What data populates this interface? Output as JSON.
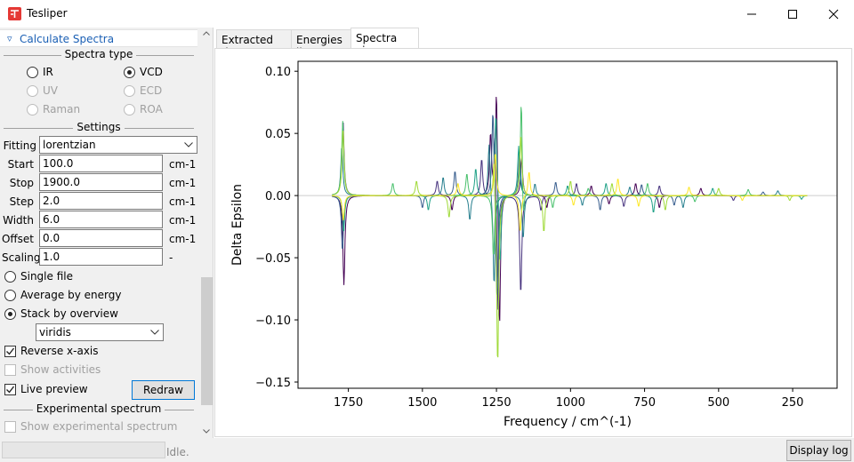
{
  "window": {
    "title": "Tesliper",
    "minimize_glyph": "─",
    "maximize_glyph": "☐",
    "close_glyph": "✕"
  },
  "sidebar": {
    "section_header": "▿ Calculate Spectra",
    "spectra_type": {
      "title": "Spectra type",
      "options": [
        {
          "label": "IR",
          "checked": false,
          "enabled": true
        },
        {
          "label": "VCD",
          "checked": true,
          "enabled": true
        },
        {
          "label": "UV",
          "checked": false,
          "enabled": false
        },
        {
          "label": "ECD",
          "checked": false,
          "enabled": false
        },
        {
          "label": "Raman",
          "checked": false,
          "enabled": false
        },
        {
          "label": "ROA",
          "checked": false,
          "enabled": false
        }
      ]
    },
    "settings": {
      "title": "Settings",
      "fitting_label": "Fitting",
      "fitting_value": "lorentzian",
      "fields": [
        {
          "label": "Start",
          "value": "100.0",
          "unit": "cm-1"
        },
        {
          "label": "Stop",
          "value": "1900.0",
          "unit": "cm-1"
        },
        {
          "label": "Step",
          "value": "2.0",
          "unit": "cm-1"
        },
        {
          "label": "Width",
          "value": "6.0",
          "unit": "cm-1"
        },
        {
          "label": "Offset",
          "value": "0.0",
          "unit": "cm-1"
        },
        {
          "label": "Scaling",
          "value": "1.0",
          "unit": "-"
        }
      ]
    },
    "mode": {
      "single_file": "Single file",
      "average_by_energy": "Average by energy",
      "stack_by_overview": "Stack by overview",
      "selected": "stack_by_overview"
    },
    "colormap": "viridis",
    "reverse_x_axis": {
      "label": "Reverse x-axis",
      "checked": true
    },
    "show_activities": {
      "label": "Show activities",
      "checked": false,
      "enabled": false
    },
    "live_preview": {
      "label": "Live preview",
      "checked": true
    },
    "redraw_label": "Redraw",
    "experimental": {
      "title": "Experimental spectrum",
      "show_label": "Show experimental spectrum",
      "checked": false,
      "enabled": false
    }
  },
  "tabs": [
    {
      "label": "Extracted data",
      "active": false
    },
    {
      "label": "Energies list",
      "active": false
    },
    {
      "label": "Spectra view",
      "active": true
    }
  ],
  "status": {
    "text": "Idle.",
    "display_log_label": "Display log"
  },
  "chart_data": {
    "type": "line",
    "xlabel": "Frequency / cm^(-1)",
    "ylabel": "Delta Epsilon",
    "xlim": [
      1920,
      100
    ],
    "ylim": [
      -0.155,
      0.108
    ],
    "x_reversed": true,
    "xticks": [
      1750,
      1500,
      1250,
      1000,
      750,
      500,
      250
    ],
    "yticks": [
      0.1,
      0.05,
      0.0,
      -0.05,
      -0.1,
      -0.15
    ],
    "colormap": "viridis",
    "grid": false,
    "series": [
      {
        "color": "#440154",
        "peaks": [
          [
            1765,
            -0.072
          ],
          [
            1250,
            0.097
          ],
          [
            1240,
            -0.12
          ],
          [
            1270,
            0.05
          ],
          [
            1165,
            0.03
          ],
          [
            1400,
            -0.012
          ],
          [
            1080,
            -0.01
          ],
          [
            930,
            0.008
          ],
          [
            870,
            -0.007
          ],
          [
            780,
            0.01
          ],
          [
            700,
            -0.01
          ],
          [
            560,
            0.006
          ]
        ]
      },
      {
        "color": "#46327e",
        "peaks": [
          [
            1768,
            0.062
          ],
          [
            1255,
            0.06
          ],
          [
            1245,
            -0.1
          ],
          [
            1168,
            -0.08
          ],
          [
            1300,
            0.03
          ],
          [
            1450,
            0.012
          ],
          [
            1100,
            -0.012
          ],
          [
            980,
            0.01
          ],
          [
            820,
            -0.009
          ],
          [
            700,
            0.008
          ],
          [
            450,
            -0.004
          ]
        ]
      },
      {
        "color": "#365c8d",
        "peaks": [
          [
            1770,
            -0.045
          ],
          [
            1262,
            0.075
          ],
          [
            1248,
            -0.09
          ],
          [
            1172,
            0.035
          ],
          [
            1390,
            0.02
          ],
          [
            1500,
            -0.01
          ],
          [
            1050,
            0.011
          ],
          [
            900,
            -0.012
          ],
          [
            760,
            0.009
          ],
          [
            650,
            -0.008
          ],
          [
            350,
            0.003
          ]
        ]
      },
      {
        "color": "#277f8e",
        "peaks": [
          [
            1772,
            0.04
          ],
          [
            1258,
            -0.075
          ],
          [
            1275,
            0.045
          ],
          [
            1160,
            -0.035
          ],
          [
            1340,
            -0.02
          ],
          [
            1430,
            0.015
          ],
          [
            1120,
            0.01
          ],
          [
            960,
            -0.008
          ],
          [
            800,
            0.007
          ],
          [
            620,
            -0.01
          ],
          [
            300,
            0.004
          ]
        ]
      },
      {
        "color": "#1fa187",
        "peaks": [
          [
            1766,
            -0.03
          ],
          [
            1252,
            0.07
          ],
          [
            1238,
            -0.06
          ],
          [
            1175,
            0.04
          ],
          [
            1320,
            0.022
          ],
          [
            1480,
            -0.012
          ],
          [
            1010,
            0.008
          ],
          [
            880,
            0.01
          ],
          [
            720,
            -0.014
          ],
          [
            520,
            0.006
          ],
          [
            220,
            -0.003
          ]
        ]
      },
      {
        "color": "#4ac16d",
        "peaks": [
          [
            1769,
            0.06
          ],
          [
            1260,
            -0.05
          ],
          [
            1166,
            0.085
          ],
          [
            1160,
            -0.035
          ],
          [
            1350,
            0.018
          ],
          [
            1600,
            0.01
          ],
          [
            1060,
            -0.01
          ],
          [
            940,
            0.006
          ],
          [
            740,
            0.01
          ],
          [
            580,
            -0.005
          ],
          [
            400,
            0.005
          ]
        ]
      },
      {
        "color": "#a0da39",
        "peaks": [
          [
            1768,
            0.055
          ],
          [
            1246,
            -0.142
          ],
          [
            1258,
            0.04
          ],
          [
            1168,
            0.05
          ],
          [
            1410,
            -0.018
          ],
          [
            1520,
            0.012
          ],
          [
            1090,
            -0.03
          ],
          [
            1000,
            0.012
          ],
          [
            860,
            0.01
          ],
          [
            680,
            -0.012
          ],
          [
            500,
            0.006
          ],
          [
            260,
            -0.004
          ]
        ]
      },
      {
        "color": "#fde725",
        "peaks": [
          [
            1767,
            -0.02
          ],
          [
            1254,
            0.035
          ],
          [
            1170,
            -0.03
          ],
          [
            1380,
            0.01
          ],
          [
            1140,
            0.02
          ],
          [
            990,
            -0.008
          ],
          [
            840,
            0.014
          ],
          [
            770,
            -0.009
          ],
          [
            600,
            0.007
          ],
          [
            420,
            -0.004
          ]
        ]
      }
    ]
  }
}
